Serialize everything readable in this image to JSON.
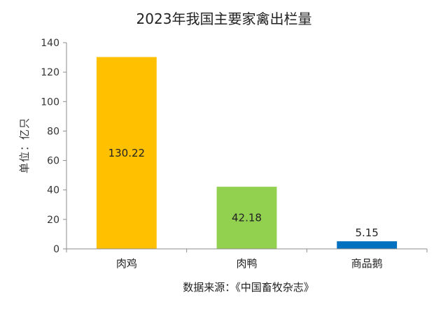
{
  "chart_data": {
    "type": "bar",
    "title": "2023年我国主要家禽出栏量",
    "ylabel": "单位：亿只",
    "xlabel": "",
    "source": "数据来源：《中国畜牧杂志》",
    "categories": [
      "肉鸡",
      "肉鸭",
      "商品鹅"
    ],
    "values": [
      130.22,
      42.18,
      5.15
    ],
    "data_labels": [
      "130.22",
      "42.18",
      "5.15"
    ],
    "colors": [
      "#FFC000",
      "#92D050",
      "#0070C0"
    ],
    "ylim": [
      0,
      140
    ],
    "yticks": [
      0,
      20,
      40,
      60,
      80,
      100,
      120,
      140
    ],
    "grid": false,
    "legend": "none"
  }
}
